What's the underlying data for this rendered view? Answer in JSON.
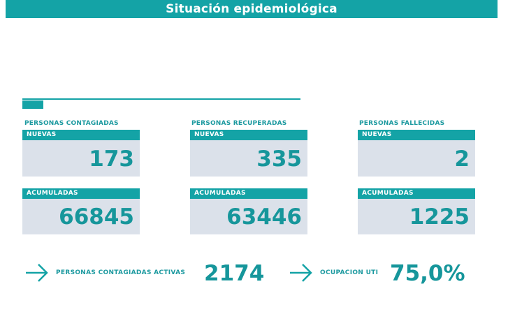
{
  "header": {
    "title": "Situación epidemiológica"
  },
  "colors": {
    "accent": "#14a3a6",
    "card_bg": "#dbe1ea",
    "value_text": "#16969b"
  },
  "groups": [
    {
      "label": "PERSONAS CONTAGIADAS",
      "new_label": "NUEVAS",
      "new_value": "173",
      "cum_label": "ACUMULADAS",
      "cum_value": "66845"
    },
    {
      "label": "PERSONAS RECUPERADAS",
      "new_label": "NUEVAS",
      "new_value": "335",
      "cum_label": "ACUMULADAS",
      "cum_value": "63446"
    },
    {
      "label": "PERSONAS FALLECIDAS",
      "new_label": "NUEVAS",
      "new_value": "2",
      "cum_label": "ACUMULADAS",
      "cum_value": "1225"
    }
  ],
  "summary": {
    "active": {
      "label": "PERSONAS CONTAGIADAS ACTIVAS",
      "value": "2174",
      "icon": "arrow-right-icon"
    },
    "icu": {
      "label": "OCUPACION UTI",
      "value": "75,0%",
      "icon": "arrow-right-icon"
    }
  }
}
